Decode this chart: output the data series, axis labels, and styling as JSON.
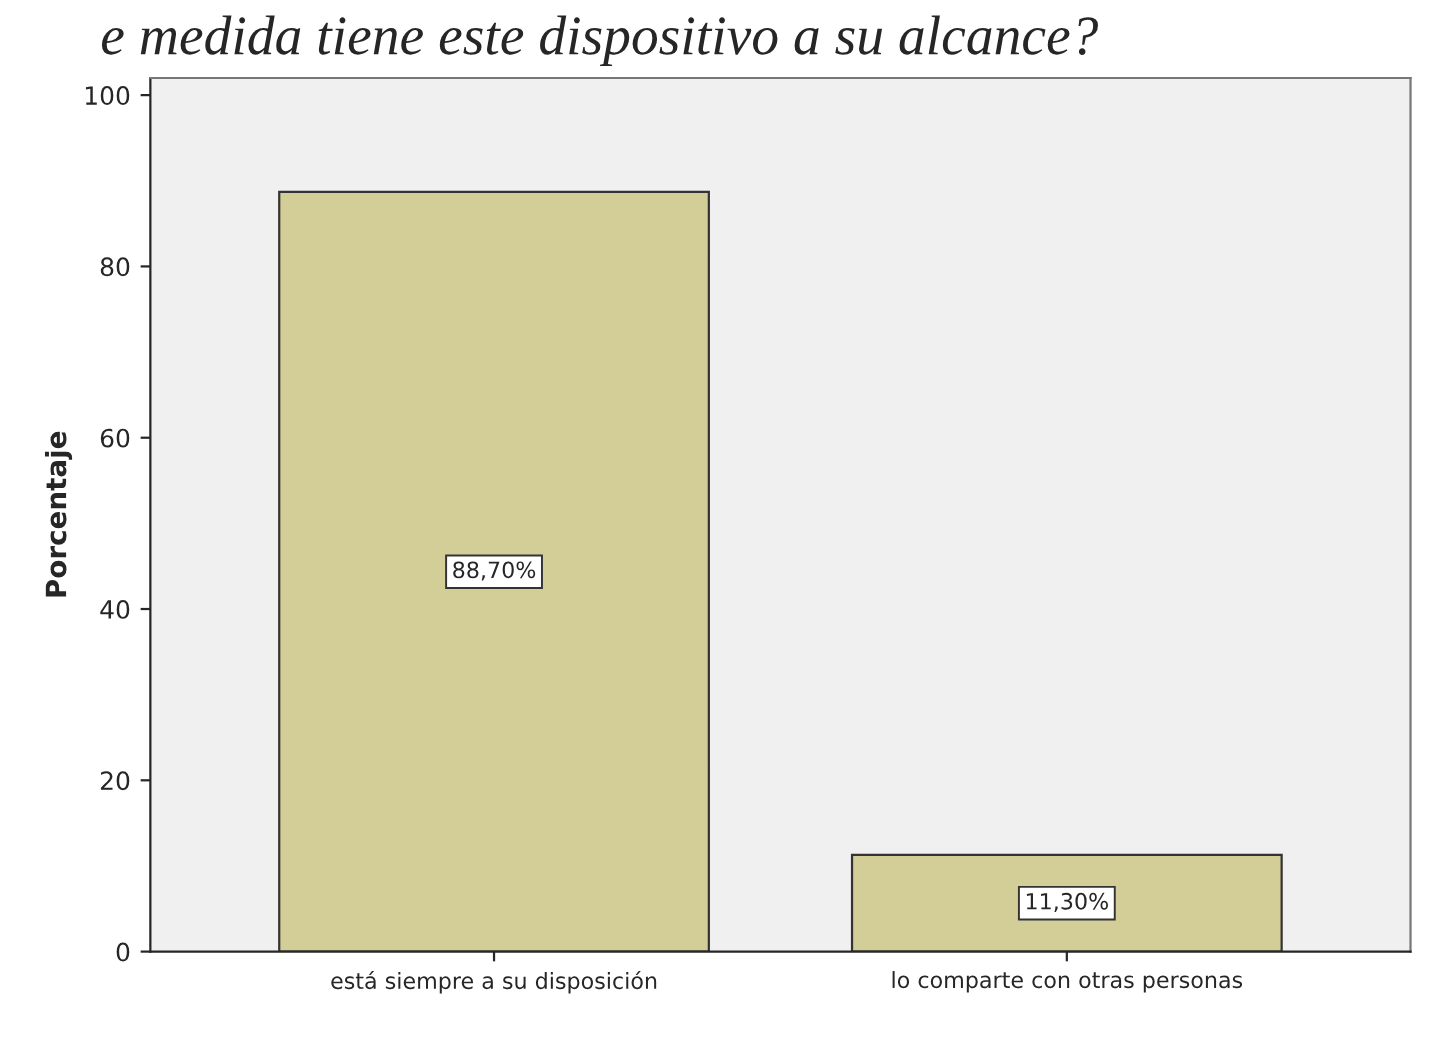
{
  "chart_data": {
    "type": "bar",
    "title": "e medida tiene este dispositivo a su alcance?",
    "ylabel": "Porcentaje",
    "categories": [
      "está siempre a su disposición",
      "lo comparte con otras personas"
    ],
    "values": [
      88.7,
      11.3
    ],
    "value_labels": [
      "88,70%",
      "11,30%"
    ],
    "color": "#d3ce97",
    "ylim": [
      0,
      102
    ],
    "yticks": [
      0,
      20,
      40,
      60,
      80,
      100
    ],
    "grid": false
  }
}
